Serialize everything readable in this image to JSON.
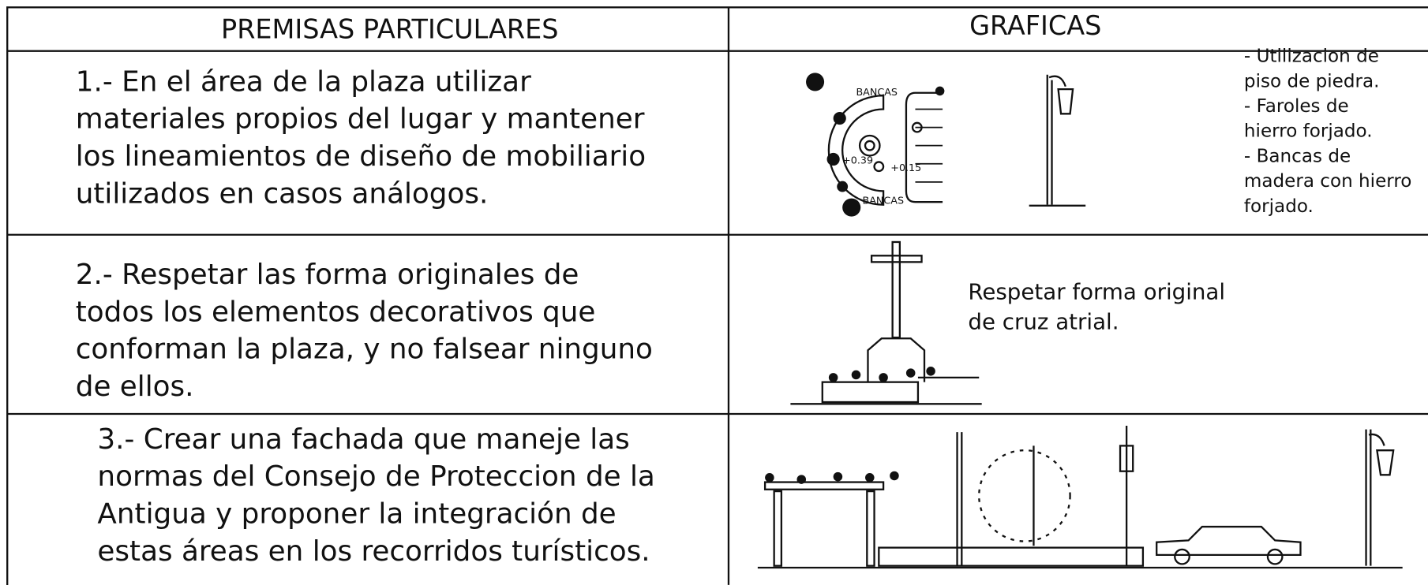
{
  "header": {
    "left": "PREMISAS PARTICULARES",
    "right": "GRAFICAS"
  },
  "rows": [
    {
      "premise": [
        "1.-  En el área de la plaza utilizar",
        "materiales propios del lugar y mantener",
        "los lineamientos de diseño de mobiliario",
        "utilizados en casos análogos."
      ],
      "notes": [
        "- Utilizacion de",
        "piso de piedra.",
        "- Faroles de",
        "hierro forjado.",
        "- Bancas de",
        "madera con hierro",
        "forjado."
      ],
      "labels": [
        "BANCAS",
        "BANCAS",
        "+0.39",
        "+0.15"
      ]
    },
    {
      "premise": [
        "2.-  Respetar las forma originales de",
        "todos los elementos decorativos que",
        "conforman la plaza, y no falsear ninguno",
        "de ellos."
      ],
      "notes": [
        "Respetar forma original",
        "de cruz atrial."
      ]
    },
    {
      "premise": [
        "3.-  Crear una fachada que maneje las",
        "normas del Consejo de Proteccion de la",
        "Antigua y proponer la integración  de",
        "estas áreas en los recorridos turísticos."
      ]
    }
  ]
}
